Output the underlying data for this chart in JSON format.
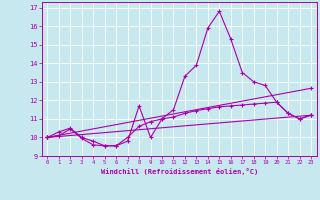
{
  "xlabel": "Windchill (Refroidissement éolien,°C)",
  "bg_color": "#c8e8f0",
  "line_color": "#aa00aa",
  "grid_color": "#ffffff",
  "xlim": [
    0,
    23
  ],
  "ylim": [
    9,
    17
  ],
  "xticks": [
    0,
    1,
    2,
    3,
    4,
    5,
    6,
    7,
    8,
    9,
    10,
    11,
    12,
    13,
    14,
    15,
    16,
    17,
    18,
    19,
    20,
    21,
    22,
    23
  ],
  "yticks": [
    9,
    10,
    11,
    12,
    13,
    14,
    15,
    16,
    17
  ],
  "curves": [
    {
      "x": [
        0,
        1,
        2,
        3,
        4,
        5,
        6,
        7,
        8,
        9,
        10,
        11,
        12,
        13,
        14,
        15,
        16,
        17,
        18,
        19,
        20,
        21,
        22,
        23
      ],
      "y": [
        10.0,
        10.3,
        10.5,
        10.0,
        9.8,
        9.55,
        9.55,
        9.8,
        11.7,
        10.0,
        11.0,
        11.5,
        13.3,
        13.9,
        15.9,
        16.8,
        15.3,
        13.5,
        13.0,
        12.8,
        11.9,
        11.3,
        11.0,
        11.2
      ]
    },
    {
      "x": [
        0,
        23
      ],
      "y": [
        10.0,
        12.65
      ]
    },
    {
      "x": [
        0,
        23
      ],
      "y": [
        10.0,
        11.2
      ]
    },
    {
      "x": [
        0,
        1,
        2,
        3,
        4,
        5,
        6,
        7,
        8,
        9,
        10,
        11,
        12,
        13,
        14,
        15,
        16,
        17,
        18,
        19,
        20,
        21,
        22,
        23
      ],
      "y": [
        10.0,
        10.1,
        10.45,
        9.95,
        9.6,
        9.55,
        9.55,
        10.0,
        10.6,
        10.85,
        11.0,
        11.1,
        11.3,
        11.45,
        11.55,
        11.65,
        11.7,
        11.75,
        11.8,
        11.85,
        11.9,
        11.3,
        11.0,
        11.2
      ]
    }
  ]
}
